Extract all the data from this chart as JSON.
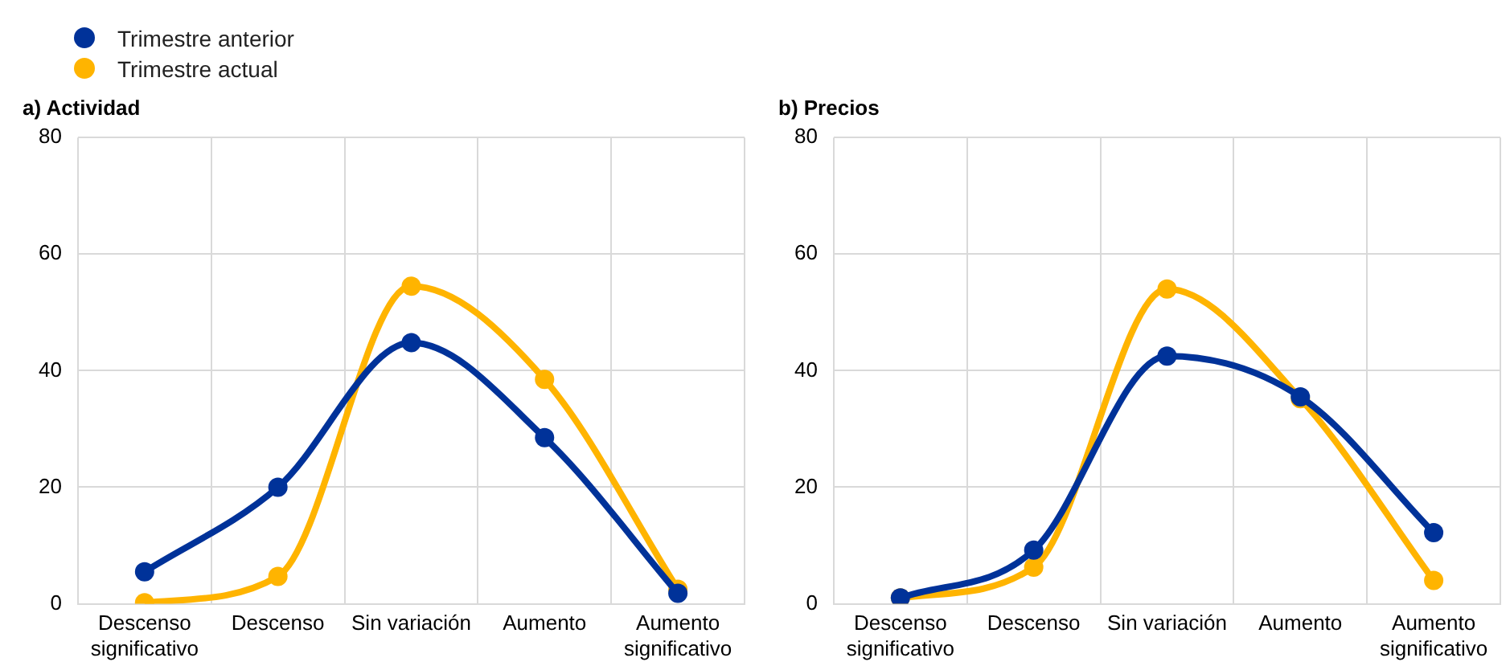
{
  "chart_data": [
    {
      "type": "line",
      "title": "a) Actividad",
      "categories": [
        "Descenso significativo",
        "Descenso",
        "Sin variación",
        "Aumento",
        "Aumento significativo"
      ],
      "series": [
        {
          "name": "Trimestre anterior",
          "color": "#003299",
          "values": [
            5.5,
            20,
            44.8,
            28.5,
            1.8
          ]
        },
        {
          "name": "Trimestre actual",
          "color": "#ffb400",
          "values": [
            0.2,
            4.7,
            54.5,
            38.5,
            2.5
          ]
        }
      ],
      "ylim": [
        0,
        80
      ],
      "yticks": [
        0,
        20,
        40,
        60,
        80
      ],
      "grid": true,
      "legend": "top left",
      "marker": "circle",
      "line_style": "solid"
    },
    {
      "type": "line",
      "title": "b) Precios",
      "categories": [
        "Descenso significativo",
        "Descenso",
        "Sin variación",
        "Aumento",
        "Aumento significativo"
      ],
      "series": [
        {
          "color": "#003299",
          "values": [
            1,
            9.2,
            42.5,
            35.5,
            12.2
          ]
        },
        {
          "color": "#ffb400",
          "values": [
            1,
            6.3,
            54,
            35.2,
            4
          ]
        }
      ],
      "ylim": [
        0,
        80
      ],
      "yticks": [
        0,
        20,
        40,
        60,
        80
      ],
      "grid": true,
      "marker": "circle",
      "line_style": "solid"
    }
  ]
}
